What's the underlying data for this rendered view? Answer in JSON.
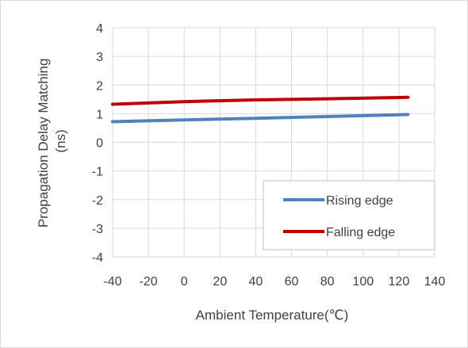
{
  "chart_data": {
    "type": "line",
    "title": "",
    "xlabel": "Ambient Temperature(℃)",
    "ylabel_lines": [
      "Propagation Delay Matching",
      "(ns)"
    ],
    "xlim": [
      -40,
      140
    ],
    "ylim": [
      -4,
      4
    ],
    "x_ticks": [
      -40,
      -20,
      0,
      20,
      40,
      60,
      80,
      100,
      120,
      140
    ],
    "y_ticks": [
      4,
      3,
      2,
      1,
      0,
      -1,
      -2,
      -3,
      -4
    ],
    "grid": true,
    "legend_position": "bottom-right",
    "series": [
      {
        "name": "Rising edge",
        "color": "#4f81bd",
        "x": [
          -40,
          0,
          40,
          80,
          125
        ],
        "y": [
          0.72,
          0.78,
          0.84,
          0.9,
          0.97
        ]
      },
      {
        "name": "Falling edge",
        "color": "#c00000",
        "x": [
          -40,
          0,
          40,
          80,
          125
        ],
        "y": [
          1.33,
          1.42,
          1.48,
          1.52,
          1.57
        ]
      }
    ]
  }
}
